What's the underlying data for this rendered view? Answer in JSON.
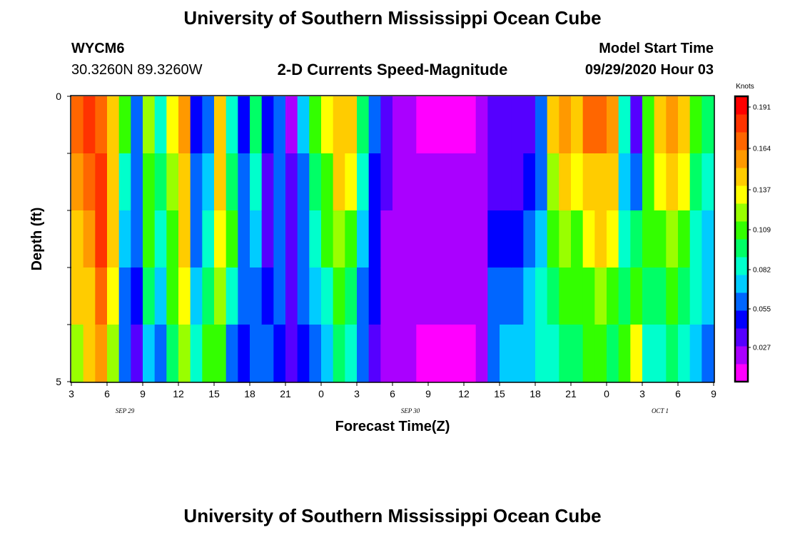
{
  "header": {
    "title": "University of Southern Mississippi Ocean Cube",
    "station": "WYCM6",
    "coordinates": "30.3260N 89.3260W",
    "subtitle": "2-D Currents Speed-Magnitude",
    "model_start_label": "Model Start Time",
    "model_start_value": "09/29/2020 Hour 03"
  },
  "footer": {
    "title": "University of Southern Mississippi Ocean Cube"
  },
  "colors": {
    "palette": [
      "#ff00ff",
      "#aa00ff",
      "#5500ff",
      "#0000ff",
      "#0066ff",
      "#00ccff",
      "#00ffcc",
      "#00ff66",
      "#33ff00",
      "#99ff00",
      "#ffff00",
      "#ffcc00",
      "#ff9900",
      "#ff6600",
      "#ff3300",
      "#ff0000"
    ],
    "missing": "#000000"
  },
  "chart_data": {
    "type": "heatmap",
    "title": "2-D Currents Speed-Magnitude",
    "xlabel": "Forecast Time(Z)",
    "ylabel": "Depth (ft)",
    "x_ticks": [
      "3",
      "6",
      "9",
      "12",
      "15",
      "18",
      "21",
      "0",
      "3",
      "6",
      "9",
      "12",
      "15",
      "18",
      "21",
      "0",
      "3",
      "6",
      "9"
    ],
    "date_labels": [
      "SEP 29",
      "SEP 30",
      "OCT 1"
    ],
    "y_tick_labels": [
      "0",
      "5"
    ],
    "y_range": [
      0,
      5
    ],
    "colorbar": {
      "unit": "Knots",
      "tick_labels": [
        "0.191",
        "0.164",
        "0.137",
        "0.109",
        "0.082",
        "0.055",
        "0.027"
      ],
      "range": [
        0.0,
        0.2
      ]
    },
    "hours": 54,
    "depth_layers": 5,
    "speed_knots": [
      [
        0.17,
        0.16,
        0.15,
        0.14,
        0.12
      ],
      [
        0.18,
        0.17,
        0.16,
        0.15,
        0.14
      ],
      [
        0.17,
        0.18,
        0.18,
        0.17,
        0.16
      ],
      [
        0.15,
        0.15,
        0.14,
        0.13,
        0.12
      ],
      [
        0.1,
        0.08,
        0.07,
        0.06,
        0.05
      ],
      [
        0.05,
        0.06,
        0.05,
        0.04,
        0.03
      ],
      [
        0.12,
        0.11,
        0.1,
        0.09,
        0.07
      ],
      [
        0.08,
        0.09,
        0.08,
        0.07,
        0.06
      ],
      [
        0.13,
        0.12,
        0.11,
        0.1,
        0.09
      ],
      [
        0.16,
        0.15,
        0.14,
        0.13,
        0.12
      ],
      [
        0.04,
        0.05,
        0.06,
        0.07,
        0.08
      ],
      [
        0.06,
        0.07,
        0.08,
        0.09,
        0.1
      ],
      [
        0.15,
        0.14,
        0.13,
        0.12,
        0.11
      ],
      [
        0.08,
        0.09,
        0.1,
        0.08,
        0.06
      ],
      [
        0.04,
        0.05,
        0.06,
        0.05,
        0.04
      ],
      [
        0.09,
        0.08,
        0.07,
        0.06,
        0.05
      ],
      [
        0.04,
        0.03,
        0.03,
        0.04,
        0.05
      ],
      [
        0.06,
        0.05,
        0.05,
        0.05,
        0.04
      ],
      [
        0.02,
        0.03,
        0.03,
        0.03,
        0.03
      ],
      [
        0.07,
        0.06,
        0.05,
        0.05,
        0.04
      ],
      [
        0.11,
        0.09,
        0.08,
        0.07,
        0.06
      ],
      [
        0.13,
        0.11,
        0.1,
        0.08,
        0.07
      ],
      [
        0.15,
        0.14,
        0.12,
        0.1,
        0.09
      ],
      [
        0.14,
        0.13,
        0.11,
        0.09,
        0.08
      ],
      [
        0.09,
        0.08,
        0.07,
        0.06,
        0.05
      ],
      [
        0.05,
        0.04,
        0.04,
        0.04,
        0.03
      ],
      [
        0.03,
        0.03,
        0.02,
        0.02,
        0.02
      ],
      [
        0.02,
        0.02,
        0.02,
        0.02,
        0.02
      ],
      [
        0.015,
        0.02,
        0.02,
        0.02,
        0.015
      ],
      [
        0.012,
        0.018,
        0.018,
        0.018,
        0.01
      ],
      [
        0.01,
        0.016,
        0.016,
        0.016,
        0.008
      ],
      [
        0.008,
        0.014,
        0.016,
        0.016,
        0.006
      ],
      [
        0.006,
        0.014,
        0.016,
        0.016,
        0.008
      ],
      [
        0.008,
        0.016,
        0.018,
        0.018,
        0.01
      ],
      [
        0.015,
        0.02,
        0.02,
        0.02,
        0.02
      ],
      [
        0.025,
        0.03,
        0.04,
        0.05,
        0.06
      ],
      [
        0.03,
        0.035,
        0.045,
        0.055,
        0.065
      ],
      [
        0.025,
        0.03,
        0.04,
        0.06,
        0.07
      ],
      [
        0.03,
        0.04,
        0.05,
        0.07,
        0.075
      ],
      [
        0.05,
        0.06,
        0.07,
        0.08,
        0.085
      ],
      [
        0.14,
        0.12,
        0.1,
        0.09,
        0.08
      ],
      [
        0.16,
        0.14,
        0.12,
        0.1,
        0.09
      ],
      [
        0.15,
        0.13,
        0.11,
        0.1,
        0.09
      ],
      [
        0.17,
        0.15,
        0.13,
        0.11,
        0.1
      ],
      [
        0.165,
        0.15,
        0.14,
        0.12,
        0.1
      ],
      [
        0.16,
        0.15,
        0.13,
        0.11,
        0.09
      ],
      [
        0.08,
        0.07,
        0.08,
        0.09,
        0.1
      ],
      [
        0.03,
        0.06,
        0.09,
        0.11,
        0.13
      ],
      [
        0.1,
        0.11,
        0.1,
        0.09,
        0.08
      ],
      [
        0.14,
        0.13,
        0.11,
        0.09,
        0.08
      ],
      [
        0.16,
        0.14,
        0.12,
        0.1,
        0.09
      ],
      [
        0.14,
        0.13,
        0.11,
        0.09,
        0.08
      ],
      [
        0.1,
        0.09,
        0.08,
        0.08,
        0.07
      ],
      [
        0.09,
        0.08,
        0.07,
        0.07,
        0.06
      ]
    ]
  }
}
